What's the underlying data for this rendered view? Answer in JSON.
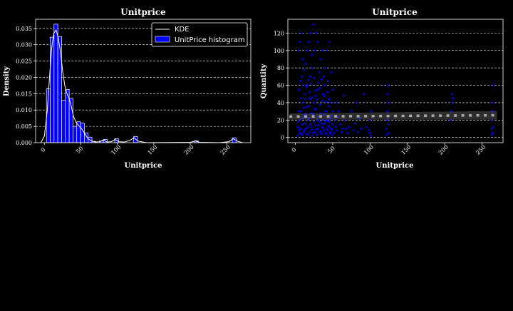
{
  "chart_data": [
    {
      "type": "bar",
      "title": "Unitprice",
      "xlabel": "Unitprice",
      "ylabel": "Density",
      "xlim": [
        -12,
        283
      ],
      "ylim": [
        0,
        0.0378
      ],
      "xticks": [
        0,
        50,
        100,
        150,
        200,
        250
      ],
      "yticks": [
        0.0,
        0.005,
        0.01,
        0.015,
        0.02,
        0.025,
        0.03,
        0.035
      ],
      "ytick_labels": [
        "0.000",
        "0.005",
        "0.010",
        "0.015",
        "0.020",
        "0.025",
        "0.030",
        "0.035"
      ],
      "grid": "y-dashed",
      "legend": {
        "placement": "top-right",
        "entries": [
          {
            "label": "KDE",
            "kind": "line",
            "color": "#ffffff"
          },
          {
            "label": "UnitPrice histogram",
            "kind": "patch",
            "color": "#0000ff"
          }
        ]
      },
      "colors": {
        "bar": "#0000ff",
        "bar_edge": "#ffffff",
        "kde": "#ffffff"
      },
      "bin_width": 5.2,
      "histogram": [
        {
          "x0": 2.8,
          "value": 0.0165
        },
        {
          "x0": 8.0,
          "value": 0.0323
        },
        {
          "x0": 13.2,
          "value": 0.0363
        },
        {
          "x0": 18.4,
          "value": 0.0325
        },
        {
          "x0": 23.6,
          "value": 0.013
        },
        {
          "x0": 28.8,
          "value": 0.0163
        },
        {
          "x0": 34.0,
          "value": 0.0136
        },
        {
          "x0": 39.2,
          "value": 0.005
        },
        {
          "x0": 44.4,
          "value": 0.0064
        },
        {
          "x0": 49.6,
          "value": 0.006
        },
        {
          "x0": 54.8,
          "value": 0.003
        },
        {
          "x0": 60.0,
          "value": 0.0017
        },
        {
          "x0": 65.2,
          "value": 0.0004
        },
        {
          "x0": 75.6,
          "value": 0.0005
        },
        {
          "x0": 80.8,
          "value": 0.001
        },
        {
          "x0": 96.4,
          "value": 0.0012
        },
        {
          "x0": 122.4,
          "value": 0.0019
        },
        {
          "x0": 205.6,
          "value": 0.0006
        },
        {
          "x0": 257.6,
          "value": 0.0015
        }
      ],
      "kde": [
        [
          -5,
          0.0
        ],
        [
          0,
          0.002
        ],
        [
          4,
          0.01
        ],
        [
          7,
          0.02
        ],
        [
          10,
          0.029
        ],
        [
          13,
          0.0335
        ],
        [
          16,
          0.0345
        ],
        [
          19,
          0.0322
        ],
        [
          22,
          0.028
        ],
        [
          25,
          0.022
        ],
        [
          28,
          0.0175
        ],
        [
          31,
          0.015
        ],
        [
          34,
          0.0135
        ],
        [
          37,
          0.011
        ],
        [
          40,
          0.008
        ],
        [
          44,
          0.006
        ],
        [
          48,
          0.005
        ],
        [
          52,
          0.004
        ],
        [
          56,
          0.0025
        ],
        [
          60,
          0.0012
        ],
        [
          65,
          0.0005
        ],
        [
          70,
          0.0002
        ],
        [
          76,
          0.0003
        ],
        [
          81,
          0.0008
        ],
        [
          86,
          0.0002
        ],
        [
          92,
          0.0003
        ],
        [
          97,
          0.001
        ],
        [
          102,
          0.0003
        ],
        [
          110,
          0.0002
        ],
        [
          118,
          0.0008
        ],
        [
          123,
          0.0015
        ],
        [
          128,
          0.0005
        ],
        [
          140,
          0.0
        ],
        [
          200,
          0.0001
        ],
        [
          207,
          0.0005
        ],
        [
          213,
          0.0001
        ],
        [
          240,
          0.0
        ],
        [
          253,
          0.0003
        ],
        [
          259,
          0.0012
        ],
        [
          265,
          0.0004
        ],
        [
          272,
          0.0
        ]
      ]
    },
    {
      "type": "scatter",
      "title": "Unitprice",
      "xlabel": "Unitprice",
      "ylabel": "Quantity",
      "xlim": [
        -10,
        278
      ],
      "ylim": [
        -6,
        136
      ],
      "xticks": [
        0,
        50,
        100,
        150,
        200,
        250
      ],
      "yticks": [
        0,
        20,
        40,
        60,
        80,
        100,
        120
      ],
      "grid": "y-dashed",
      "colors": {
        "points": "#0000ff",
        "trend": "#aaaaaa"
      },
      "points": [
        [
          3,
          12
        ],
        [
          5,
          8
        ],
        [
          6,
          20
        ],
        [
          7,
          4
        ],
        [
          8,
          30
        ],
        [
          9,
          15
        ],
        [
          10,
          40
        ],
        [
          11,
          6
        ],
        [
          12,
          25
        ],
        [
          13,
          50
        ],
        [
          14,
          10
        ],
        [
          15,
          35
        ],
        [
          16,
          60
        ],
        [
          17,
          3
        ],
        [
          18,
          22
        ],
        [
          19,
          45
        ],
        [
          20,
          70
        ],
        [
          21,
          12
        ],
        [
          22,
          28
        ],
        [
          23,
          80
        ],
        [
          24,
          5
        ],
        [
          25,
          18
        ],
        [
          26,
          33
        ],
        [
          27,
          48
        ],
        [
          28,
          9
        ],
        [
          29,
          20
        ],
        [
          30,
          55
        ],
        [
          31,
          14
        ],
        [
          32,
          24
        ],
        [
          33,
          38
        ],
        [
          34,
          7
        ],
        [
          35,
          16
        ],
        [
          36,
          42
        ],
        [
          37,
          11
        ],
        [
          38,
          26
        ],
        [
          39,
          60
        ],
        [
          40,
          4
        ],
        [
          41,
          19
        ],
        [
          42,
          30
        ],
        [
          43,
          8
        ],
        [
          44,
          13
        ],
        [
          45,
          36
        ],
        [
          46,
          5
        ],
        [
          47,
          22
        ],
        [
          48,
          10
        ],
        [
          49,
          3
        ],
        [
          50,
          15
        ],
        [
          4,
          100
        ],
        [
          6,
          110
        ],
        [
          8,
          120
        ],
        [
          10,
          90
        ],
        [
          12,
          78
        ],
        [
          14,
          85
        ],
        [
          16,
          100
        ],
        [
          18,
          110
        ],
        [
          20,
          120
        ],
        [
          22,
          95
        ],
        [
          24,
          130
        ],
        [
          26,
          100
        ],
        [
          28,
          120
        ],
        [
          30,
          110
        ],
        [
          32,
          75
        ],
        [
          34,
          90
        ],
        [
          36,
          100
        ],
        [
          38,
          70
        ],
        [
          40,
          80
        ],
        [
          42,
          100
        ],
        [
          44,
          65
        ],
        [
          46,
          110
        ],
        [
          48,
          75
        ],
        [
          50,
          55
        ],
        [
          5,
          55
        ],
        [
          7,
          65
        ],
        [
          9,
          70
        ],
        [
          11,
          60
        ],
        [
          13,
          44
        ],
        [
          15,
          58
        ],
        [
          17,
          66
        ],
        [
          19,
          52
        ],
        [
          21,
          62
        ],
        [
          23,
          46
        ],
        [
          25,
          68
        ],
        [
          27,
          54
        ],
        [
          29,
          44
        ],
        [
          31,
          63
        ],
        [
          33,
          57
        ],
        [
          35,
          67
        ],
        [
          37,
          50
        ],
        [
          39,
          48
        ],
        [
          41,
          41
        ],
        [
          43,
          52
        ],
        [
          45,
          44
        ],
        [
          47,
          40
        ],
        [
          3,
          2
        ],
        [
          4,
          18
        ],
        [
          5,
          30
        ],
        [
          6,
          5
        ],
        [
          7,
          10
        ],
        [
          8,
          45
        ],
        [
          9,
          3
        ],
        [
          10,
          22
        ],
        [
          11,
          34
        ],
        [
          12,
          8
        ],
        [
          13,
          16
        ],
        [
          14,
          27
        ],
        [
          15,
          4
        ],
        [
          16,
          12
        ],
        [
          17,
          20
        ],
        [
          18,
          36
        ],
        [
          19,
          6
        ],
        [
          20,
          15
        ],
        [
          21,
          44
        ],
        [
          22,
          9
        ],
        [
          23,
          2
        ],
        [
          24,
          26
        ],
        [
          25,
          40
        ],
        [
          26,
          6
        ],
        [
          27,
          14
        ],
        [
          28,
          32
        ],
        [
          29,
          3
        ],
        [
          30,
          10
        ],
        [
          31,
          24
        ],
        [
          32,
          18
        ],
        [
          33,
          6
        ],
        [
          34,
          28
        ],
        [
          35,
          4
        ],
        [
          36,
          12
        ],
        [
          37,
          20
        ],
        [
          38,
          8
        ],
        [
          39,
          16
        ],
        [
          40,
          30
        ],
        [
          41,
          5
        ],
        [
          42,
          10
        ],
        [
          43,
          20
        ],
        [
          44,
          2
        ],
        [
          45,
          18
        ],
        [
          46,
          12
        ],
        [
          47,
          6
        ],
        [
          48,
          25
        ],
        [
          49,
          9
        ],
        [
          50,
          30
        ],
        [
          52,
          5
        ],
        [
          53,
          20
        ],
        [
          54,
          12
        ],
        [
          55,
          40
        ],
        [
          56,
          8
        ],
        [
          57,
          24
        ],
        [
          58,
          30
        ],
        [
          60,
          15
        ],
        [
          62,
          6
        ],
        [
          63,
          10
        ],
        [
          65,
          48
        ],
        [
          66,
          20
        ],
        [
          68,
          10
        ],
        [
          70,
          5
        ],
        [
          72,
          12
        ],
        [
          75,
          30
        ],
        [
          78,
          8
        ],
        [
          80,
          16
        ],
        [
          82,
          40
        ],
        [
          84,
          6
        ],
        [
          86,
          22
        ],
        [
          88,
          10
        ],
        [
          92,
          50
        ],
        [
          95,
          12
        ],
        [
          98,
          8
        ],
        [
          100,
          5
        ],
        [
          100,
          20
        ],
        [
          101,
          2
        ],
        [
          102,
          30
        ],
        [
          122,
          3
        ],
        [
          122,
          10
        ],
        [
          123,
          20
        ],
        [
          123,
          30
        ],
        [
          123,
          50
        ],
        [
          124,
          15
        ],
        [
          124,
          40
        ],
        [
          124,
          60
        ],
        [
          125,
          5
        ],
        [
          208,
          20
        ],
        [
          209,
          30
        ],
        [
          210,
          50
        ],
        [
          210,
          40
        ],
        [
          211,
          45
        ],
        [
          263,
          3
        ],
        [
          263,
          10
        ],
        [
          263,
          20
        ],
        [
          264,
          5
        ],
        [
          264,
          30
        ],
        [
          264,
          40
        ],
        [
          265,
          60
        ],
        [
          265,
          12
        ]
      ],
      "trend": [
        [
          -8,
          24
        ],
        [
          270,
          25.5
        ]
      ],
      "trend_band_halfwidth": 3.5
    }
  ]
}
